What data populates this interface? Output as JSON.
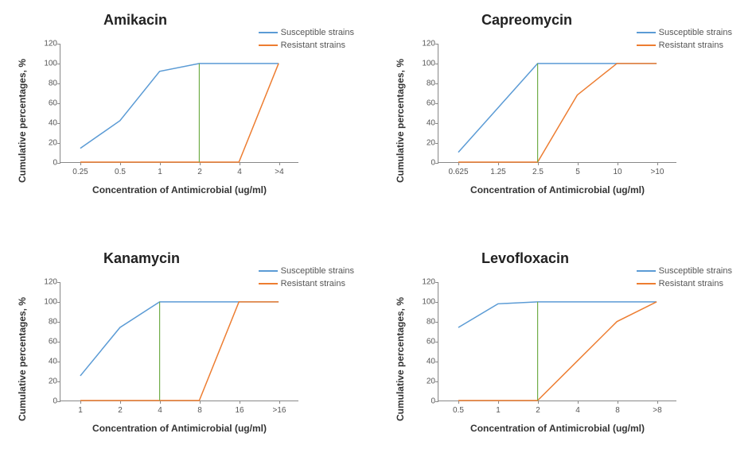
{
  "shared": {
    "ylabel": "Cumulative percentages, %",
    "xlabel": "Concentration of Antimicrobial (ug/ml)",
    "legend": {
      "s_label": "Susceptible strains",
      "r_label": "Resistant strains"
    },
    "colors": {
      "susceptible": "#5b9bd5",
      "resistant": "#ed7d31",
      "vline": "#70ad47",
      "axis": "#888888",
      "text": "#333333"
    },
    "ylim": [
      0,
      120
    ],
    "ytick_step": 20,
    "y_ticks": [
      0,
      20,
      40,
      60,
      80,
      100,
      120
    ],
    "line_width": 1.5,
    "title_fontsize": 18,
    "label_fontsize": 12,
    "tick_fontsize": 10
  },
  "panels": [
    {
      "title": "Amikacin",
      "x_labels": [
        "0.25",
        "0.5",
        "1",
        "2",
        "4",
        ">4"
      ],
      "susceptible": [
        14,
        42,
        92,
        100,
        100,
        100
      ],
      "resistant": [
        0,
        0,
        0,
        0,
        0,
        100
      ],
      "vline_index": 3
    },
    {
      "title": "Capreomycin",
      "x_labels": [
        "0.625",
        "1.25",
        "2.5",
        "5",
        "10",
        ">10"
      ],
      "susceptible": [
        10,
        55,
        100,
        100,
        100,
        100
      ],
      "resistant": [
        0,
        0,
        0,
        68,
        100,
        100
      ],
      "vline_index": 2
    },
    {
      "title": "Kanamycin",
      "x_labels": [
        "1",
        "2",
        "4",
        "8",
        "16",
        ">16"
      ],
      "susceptible": [
        25,
        74,
        100,
        100,
        100,
        100
      ],
      "resistant": [
        0,
        0,
        0,
        0,
        100,
        100
      ],
      "vline_index": 2
    },
    {
      "title": "Levofloxacin",
      "x_labels": [
        "0.5",
        "1",
        "2",
        "4",
        "8",
        ">8"
      ],
      "susceptible": [
        74,
        98,
        100,
        100,
        100,
        100
      ],
      "resistant": [
        0,
        0,
        0,
        40,
        80,
        100
      ],
      "vline_index": 2
    }
  ]
}
